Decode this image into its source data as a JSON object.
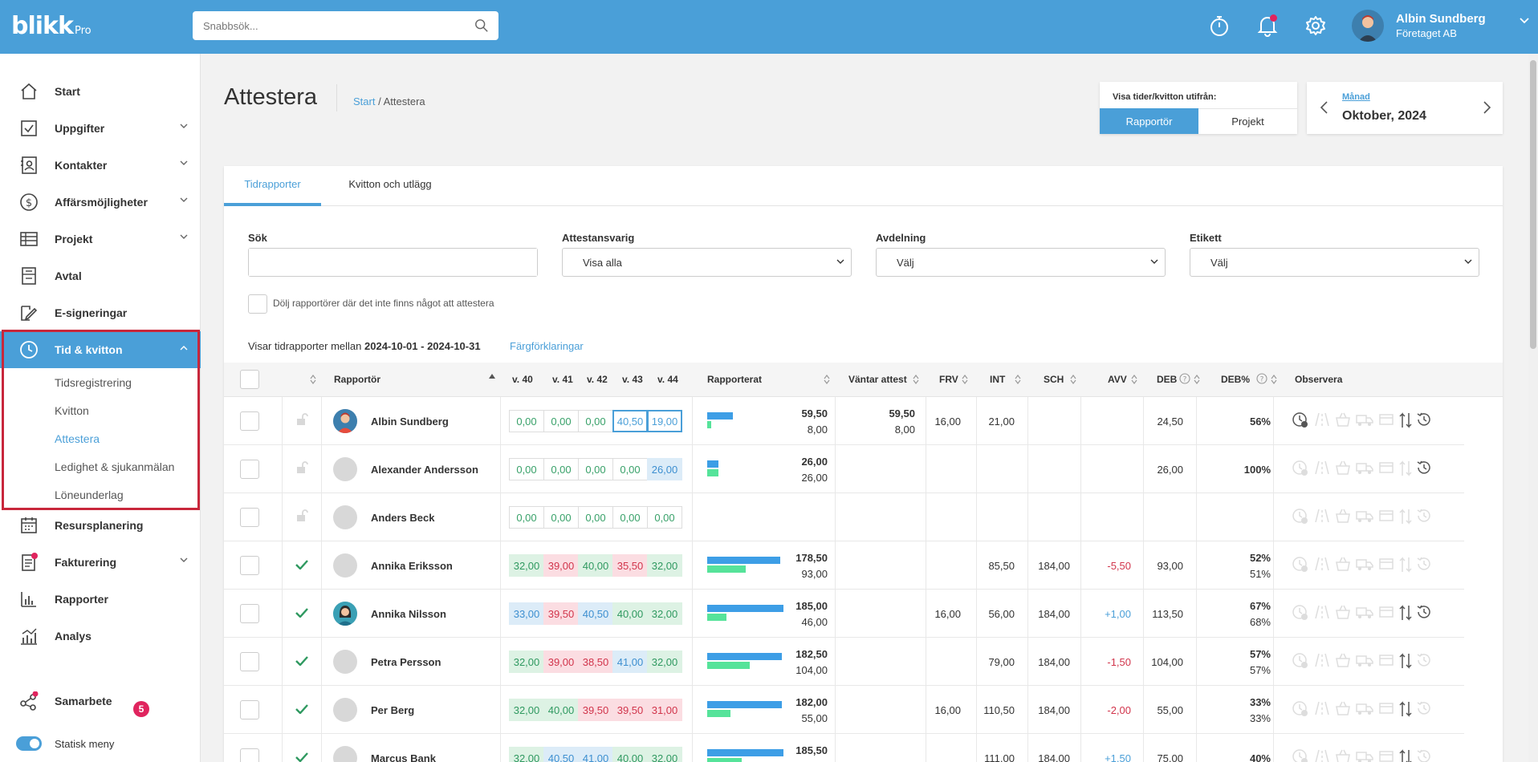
{
  "header": {
    "logo": "blikk",
    "logo_suffix": "Pro",
    "search_placeholder": "Snabbsök...",
    "user_name": "Albin Sundberg",
    "user_company": "Företaget AB"
  },
  "colors": {
    "accent": "#4a9fd8",
    "danger": "#d1344b",
    "success": "#38a169"
  },
  "sidebar": {
    "items": [
      {
        "label": "Start",
        "icon": "home-icon"
      },
      {
        "label": "Uppgifter",
        "icon": "checkbox-icon"
      },
      {
        "label": "Kontakter",
        "icon": "contact-card-icon"
      },
      {
        "label": "Affärsmöjligheter",
        "icon": "dollar-circle-icon"
      },
      {
        "label": "Projekt",
        "icon": "table-icon"
      },
      {
        "label": "Avtal",
        "icon": "contract-icon"
      },
      {
        "label": "E-signeringar",
        "icon": "signature-icon"
      },
      {
        "label": "Tid & kvitton",
        "icon": "clock-icon"
      },
      {
        "label": "Resursplanering",
        "icon": "calendar-icon"
      },
      {
        "label": "Fakturering",
        "icon": "invoice-icon"
      },
      {
        "label": "Rapporter",
        "icon": "bar-chart-icon"
      },
      {
        "label": "Analys",
        "icon": "analytics-icon"
      }
    ],
    "sub_items": [
      "Tidsregistrering",
      "Kvitton",
      "Attestera",
      "Ledighet & sjukanmälan",
      "Löneunderlag"
    ],
    "collab_label": "Samarbete",
    "collab_badge": "5",
    "static_menu_label": "Statisk meny"
  },
  "page": {
    "title": "Attestera",
    "breadcrumb_home": "Start",
    "breadcrumb_sep": "/",
    "breadcrumb_current": "Attestera"
  },
  "view_toggle": {
    "label": "Visa tider/kvitton utifrån:",
    "option_active": "Rapportör",
    "option_other": "Projekt"
  },
  "period": {
    "type_label": "Månad",
    "value": "Oktober, 2024"
  },
  "tabs": [
    "Tidrapporter",
    "Kvitton och utlägg"
  ],
  "filters": {
    "search_label": "Sök",
    "attest_label": "Attestansvarig",
    "attest_value": "Visa alla",
    "dept_label": "Avdelning",
    "dept_value": "Välj",
    "tag_label": "Etikett",
    "tag_value": "Välj",
    "hide_label": "Dölj rapportörer där det inte finns något att attestera"
  },
  "range": {
    "prefix": "Visar tidrapporter mellan",
    "dates": "2024-10-01 - 2024-10-31",
    "legend_link": "Färgförklaringar"
  },
  "table": {
    "headers": {
      "reporter": "Rapportör",
      "w40": "v. 40",
      "w41": "v. 41",
      "w42": "v. 42",
      "w43": "v. 43",
      "w44": "v. 44",
      "reported": "Rapporterat",
      "waiting": "Väntar attest",
      "frv": "FRV",
      "int": "INT",
      "sch": "SCH",
      "avv": "AVV",
      "deb": "DEB",
      "debp": "DEB%",
      "obs": "Observera"
    },
    "rows": [
      {
        "name": "Albin Sundberg",
        "status": "unlocked",
        "weeks": [
          "0,00",
          "0,00",
          "0,00",
          "40,50",
          "19,00"
        ],
        "week_styles": [
          "z",
          "z",
          "z",
          "o",
          "o"
        ],
        "reported_a": "59,50",
        "reported_b": "8,00",
        "bar_a": 0.34,
        "bar_b": 0.05,
        "wait_a": "59,50",
        "wait_b": "8,00",
        "frv": "16,00",
        "int": "21,00",
        "sch": "",
        "avv": "",
        "deb": "24,50",
        "debp_a": "56%",
        "debp_b": ""
      },
      {
        "name": "Alexander Andersson",
        "status": "unlocked",
        "weeks": [
          "0,00",
          "0,00",
          "0,00",
          "0,00",
          "26,00"
        ],
        "week_styles": [
          "z",
          "z",
          "z",
          "z",
          "b"
        ],
        "reported_a": "26,00",
        "reported_b": "26,00",
        "bar_a": 0.15,
        "bar_b": 0.15,
        "wait_a": "",
        "wait_b": "",
        "frv": "",
        "int": "",
        "sch": "",
        "avv": "",
        "deb": "26,00",
        "debp_a": "100%",
        "debp_b": ""
      },
      {
        "name": "Anders Beck",
        "status": "unlocked",
        "weeks": [
          "0,00",
          "0,00",
          "0,00",
          "0,00",
          "0,00"
        ],
        "week_styles": [
          "z",
          "z",
          "z",
          "z",
          "z"
        ],
        "reported_a": "",
        "reported_b": "",
        "bar_a": 0,
        "bar_b": 0,
        "wait_a": "",
        "wait_b": "",
        "frv": "",
        "int": "",
        "sch": "",
        "avv": "",
        "deb": "",
        "debp_a": "",
        "debp_b": ""
      },
      {
        "name": "Annika Eriksson",
        "status": "approved",
        "weeks": [
          "32,00",
          "39,00",
          "40,00",
          "35,50",
          "32,00"
        ],
        "week_styles": [
          "g",
          "r",
          "g",
          "r",
          "g"
        ],
        "reported_a": "178,50",
        "reported_b": "93,00",
        "bar_a": 0.96,
        "bar_b": 0.5,
        "wait_a": "",
        "wait_b": "",
        "frv": "",
        "int": "85,50",
        "sch": "184,00",
        "avv": "-5,50",
        "deb": "93,00",
        "debp_a": "52%",
        "debp_b": "51%"
      },
      {
        "name": "Annika Nilsson",
        "status": "approved",
        "weeks": [
          "33,00",
          "39,50",
          "40,50",
          "40,00",
          "32,00"
        ],
        "week_styles": [
          "b",
          "r",
          "b",
          "g",
          "g"
        ],
        "reported_a": "185,00",
        "reported_b": "46,00",
        "bar_a": 1.0,
        "bar_b": 0.25,
        "wait_a": "",
        "wait_b": "",
        "frv": "16,00",
        "int": "56,00",
        "sch": "184,00",
        "avv": "+1,00",
        "deb": "113,50",
        "debp_a": "67%",
        "debp_b": "68%"
      },
      {
        "name": "Petra Persson",
        "status": "approved",
        "weeks": [
          "32,00",
          "39,00",
          "38,50",
          "41,00",
          "32,00"
        ],
        "week_styles": [
          "g",
          "r",
          "r",
          "b",
          "g"
        ],
        "reported_a": "182,50",
        "reported_b": "104,00",
        "bar_a": 0.98,
        "bar_b": 0.56,
        "wait_a": "",
        "wait_b": "",
        "frv": "",
        "int": "79,00",
        "sch": "184,00",
        "avv": "-1,50",
        "deb": "104,00",
        "debp_a": "57%",
        "debp_b": "57%"
      },
      {
        "name": "Per Berg",
        "status": "approved",
        "weeks": [
          "32,00",
          "40,00",
          "39,50",
          "39,50",
          "31,00"
        ],
        "week_styles": [
          "g",
          "g",
          "r",
          "r",
          "r"
        ],
        "reported_a": "182,00",
        "reported_b": "55,00",
        "bar_a": 0.98,
        "bar_b": 0.3,
        "wait_a": "",
        "wait_b": "",
        "frv": "16,00",
        "int": "110,50",
        "sch": "184,00",
        "avv": "-2,00",
        "deb": "55,00",
        "debp_a": "33%",
        "debp_b": "33%"
      },
      {
        "name": "Marcus Bank",
        "status": "approved",
        "weeks": [
          "32,00",
          "40,50",
          "41,00",
          "40,00",
          "32,00"
        ],
        "week_styles": [
          "g",
          "b",
          "b",
          "g",
          "g"
        ],
        "reported_a": "185,50",
        "reported_b": "",
        "bar_a": 1.0,
        "bar_b": 0.45,
        "wait_a": "",
        "wait_b": "",
        "frv": "",
        "int": "111,00",
        "sch": "184,00",
        "avv": "+1,50",
        "deb": "75,00",
        "debp_a": "40%",
        "debp_b": ""
      }
    ]
  }
}
